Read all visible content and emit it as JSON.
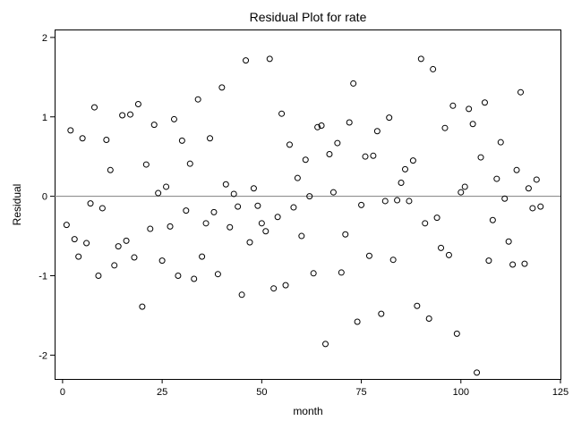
{
  "chart_data": {
    "type": "scatter",
    "title": "Residual Plot for rate",
    "xlabel": "month",
    "ylabel": "Residual",
    "xlim": [
      -2,
      125
    ],
    "ylim": [
      -2.3,
      2.1
    ],
    "xticks": [
      0,
      25,
      50,
      75,
      100,
      125
    ],
    "yticks": [
      -2,
      -1,
      0,
      1,
      2
    ],
    "reference_line_y": 0,
    "grid": false,
    "marker": "open-circle",
    "x": [
      1,
      2,
      3,
      4,
      5,
      6,
      7,
      8,
      9,
      10,
      11,
      12,
      13,
      14,
      15,
      16,
      17,
      18,
      19,
      20,
      21,
      22,
      23,
      24,
      25,
      26,
      27,
      28,
      29,
      30,
      31,
      32,
      33,
      34,
      35,
      36,
      37,
      38,
      39,
      40,
      41,
      42,
      43,
      44,
      45,
      46,
      47,
      48,
      49,
      50,
      51,
      52,
      53,
      54,
      55,
      56,
      57,
      58,
      59,
      60,
      61,
      62,
      63,
      64,
      65,
      66,
      67,
      68,
      69,
      70,
      71,
      72,
      73,
      74,
      75,
      76,
      77,
      78,
      79,
      80,
      81,
      82,
      83,
      84,
      85,
      86,
      87,
      88,
      89,
      90,
      91,
      92,
      93,
      94,
      95,
      96,
      97,
      98,
      99,
      100,
      101,
      102,
      103,
      104,
      105,
      106,
      107,
      108,
      109,
      110,
      111,
      112,
      113,
      114,
      115,
      116,
      117,
      118,
      119,
      120
    ],
    "y": [
      -0.36,
      0.83,
      -0.54,
      -0.76,
      0.73,
      -0.59,
      -0.09,
      1.12,
      -1.0,
      -0.15,
      0.71,
      0.33,
      -0.87,
      -0.63,
      1.02,
      -0.56,
      1.03,
      -0.77,
      1.16,
      -1.39,
      0.4,
      -0.41,
      0.9,
      0.04,
      -0.81,
      0.12,
      -0.38,
      0.97,
      -1.0,
      0.7,
      -0.18,
      0.41,
      -1.04,
      1.22,
      -0.76,
      -0.34,
      0.73,
      -0.2,
      -0.98,
      1.37,
      0.15,
      -0.39,
      0.03,
      -0.13,
      -1.24,
      1.71,
      -0.58,
      0.1,
      -0.12,
      -0.34,
      -0.44,
      1.73,
      -1.16,
      -0.26,
      1.04,
      -1.12,
      0.65,
      -0.14,
      0.23,
      -0.5,
      0.46,
      0.0,
      -0.97,
      0.87,
      0.89,
      -1.86,
      0.53,
      0.05,
      0.67,
      -0.96,
      -0.48,
      0.93,
      1.42,
      -1.58,
      -0.11,
      0.5,
      -0.75,
      0.51,
      0.82,
      -1.48,
      -0.06,
      0.99,
      -0.8,
      -0.05,
      0.17,
      0.34,
      -0.06,
      0.45,
      -1.38,
      1.73,
      -0.34,
      -1.54,
      1.6,
      -0.27,
      -0.65,
      0.86,
      -0.74,
      1.14,
      -1.73,
      0.05,
      0.12,
      1.1,
      0.91,
      -2.22,
      0.49,
      1.18,
      -0.81,
      -0.3,
      0.22,
      0.68,
      -0.03,
      -0.57,
      -0.86,
      0.33,
      1.31,
      -0.85,
      0.1,
      -0.15,
      0.21,
      -0.13
    ]
  }
}
